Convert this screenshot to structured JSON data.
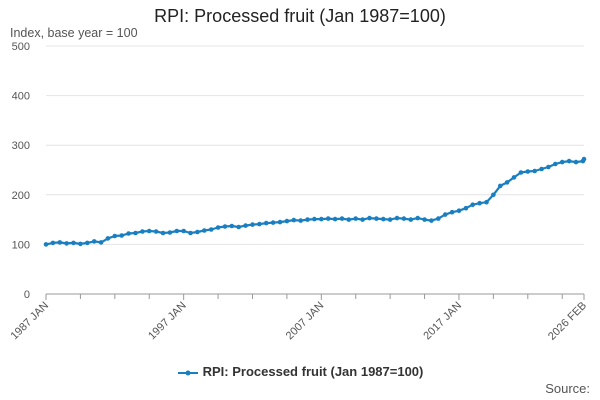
{
  "chart_data": {
    "type": "line",
    "title": "RPI: Processed fruit (Jan 1987=100)",
    "ylabel": "Index, base year = 100",
    "xlabel": "",
    "ylim": [
      0,
      500
    ],
    "yticks": [
      0,
      100,
      200,
      300,
      400,
      500
    ],
    "xticks": [
      {
        "label": "1987 JAN",
        "t": 1987.0
      },
      {
        "label": "1997 JAN",
        "t": 1997.0
      },
      {
        "label": "2007 JAN",
        "t": 2007.0
      },
      {
        "label": "2017 JAN",
        "t": 2017.0
      },
      {
        "label": "2026 FEB",
        "t": 2026.083
      }
    ],
    "xminor_ticks": [
      1989.5,
      1992.0,
      1994.5,
      1999.5,
      2002.0,
      2004.5,
      2009.5,
      2012.0,
      2014.5,
      2019.5,
      2022.0,
      2024.5
    ],
    "xlim": [
      1987.0,
      2026.083
    ],
    "grid": true,
    "legend_position": "bottom",
    "series": [
      {
        "name": "RPI: Processed fruit (Jan 1987=100)",
        "color": "#1a7fc1",
        "points": [
          [
            1987.0,
            100
          ],
          [
            1987.5,
            103
          ],
          [
            1988.0,
            104
          ],
          [
            1988.5,
            102
          ],
          [
            1989.0,
            103
          ],
          [
            1989.5,
            101
          ],
          [
            1990.0,
            103
          ],
          [
            1990.5,
            106
          ],
          [
            1991.0,
            104
          ],
          [
            1991.5,
            112
          ],
          [
            1992.0,
            117
          ],
          [
            1992.5,
            118
          ],
          [
            1993.0,
            122
          ],
          [
            1993.5,
            123
          ],
          [
            1994.0,
            126
          ],
          [
            1994.5,
            127
          ],
          [
            1995.0,
            126
          ],
          [
            1995.5,
            123
          ],
          [
            1996.0,
            124
          ],
          [
            1996.5,
            127
          ],
          [
            1997.0,
            127
          ],
          [
            1997.5,
            123
          ],
          [
            1998.0,
            125
          ],
          [
            1998.5,
            128
          ],
          [
            1999.0,
            130
          ],
          [
            1999.5,
            134
          ],
          [
            2000.0,
            136
          ],
          [
            2000.5,
            137
          ],
          [
            2001.0,
            135
          ],
          [
            2001.5,
            138
          ],
          [
            2002.0,
            140
          ],
          [
            2002.5,
            141
          ],
          [
            2003.0,
            143
          ],
          [
            2003.5,
            144
          ],
          [
            2004.0,
            145
          ],
          [
            2004.5,
            147
          ],
          [
            2005.0,
            149
          ],
          [
            2005.5,
            148
          ],
          [
            2006.0,
            150
          ],
          [
            2006.5,
            151
          ],
          [
            2007.0,
            151
          ],
          [
            2007.5,
            152
          ],
          [
            2008.0,
            151
          ],
          [
            2008.5,
            152
          ],
          [
            2009.0,
            150
          ],
          [
            2009.5,
            152
          ],
          [
            2010.0,
            150
          ],
          [
            2010.5,
            153
          ],
          [
            2011.0,
            152
          ],
          [
            2011.5,
            151
          ],
          [
            2012.0,
            150
          ],
          [
            2012.5,
            153
          ],
          [
            2013.0,
            152
          ],
          [
            2013.5,
            150
          ],
          [
            2014.0,
            153
          ],
          [
            2014.5,
            150
          ],
          [
            2015.0,
            148
          ],
          [
            2015.5,
            152
          ],
          [
            2016.0,
            160
          ],
          [
            2016.5,
            165
          ],
          [
            2017.0,
            168
          ],
          [
            2017.5,
            173
          ],
          [
            2018.0,
            180
          ],
          [
            2018.5,
            183
          ],
          [
            2019.0,
            185
          ],
          [
            2019.5,
            200
          ],
          [
            2020.0,
            218
          ],
          [
            2020.5,
            225
          ],
          [
            2021.0,
            235
          ],
          [
            2021.5,
            245
          ],
          [
            2022.0,
            247
          ],
          [
            2022.5,
            248
          ],
          [
            2023.0,
            252
          ],
          [
            2023.5,
            256
          ],
          [
            2024.0,
            262
          ],
          [
            2024.5,
            266
          ],
          [
            2025.0,
            268
          ],
          [
            2025.5,
            266
          ],
          [
            2026.0,
            268
          ],
          [
            2026.083,
            272
          ]
        ]
      }
    ]
  },
  "legend": {
    "label": "RPI: Processed fruit (Jan 1987=100)"
  },
  "footer": {
    "source": "Source:"
  }
}
